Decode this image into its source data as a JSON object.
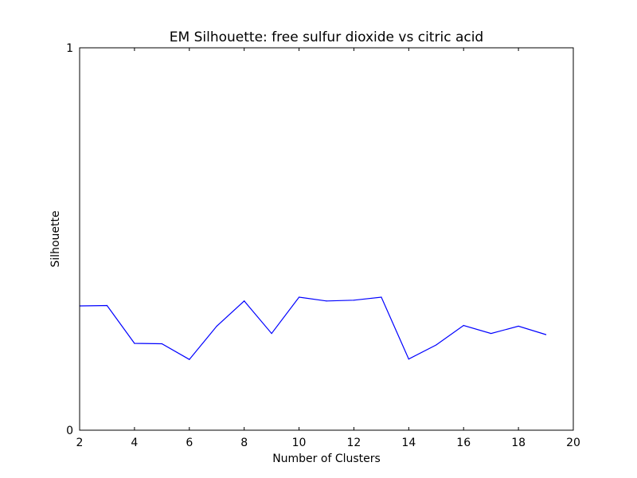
{
  "chart_data": {
    "type": "line",
    "title": "EM Silhouette: free sulfur dioxide vs citric acid",
    "xlabel": "Number of Clusters",
    "ylabel": "Silhouette",
    "xlim": [
      2,
      20
    ],
    "ylim": [
      0,
      1
    ],
    "xticks": [
      "2",
      "4",
      "6",
      "8",
      "10",
      "12",
      "14",
      "16",
      "18",
      "20"
    ],
    "yticks": [
      "0",
      "1"
    ],
    "grid": false,
    "series": [
      {
        "color": "#0000ff",
        "x": [
          2,
          3,
          4,
          5,
          6,
          7,
          8,
          9,
          10,
          11,
          12,
          13,
          14,
          15,
          16,
          17,
          18,
          19
        ],
        "y": [
          0.325,
          0.326,
          0.227,
          0.226,
          0.185,
          0.272,
          0.338,
          0.253,
          0.348,
          0.338,
          0.34,
          0.348,
          0.186,
          0.223,
          0.274,
          0.253,
          0.272,
          0.25
        ]
      }
    ]
  }
}
